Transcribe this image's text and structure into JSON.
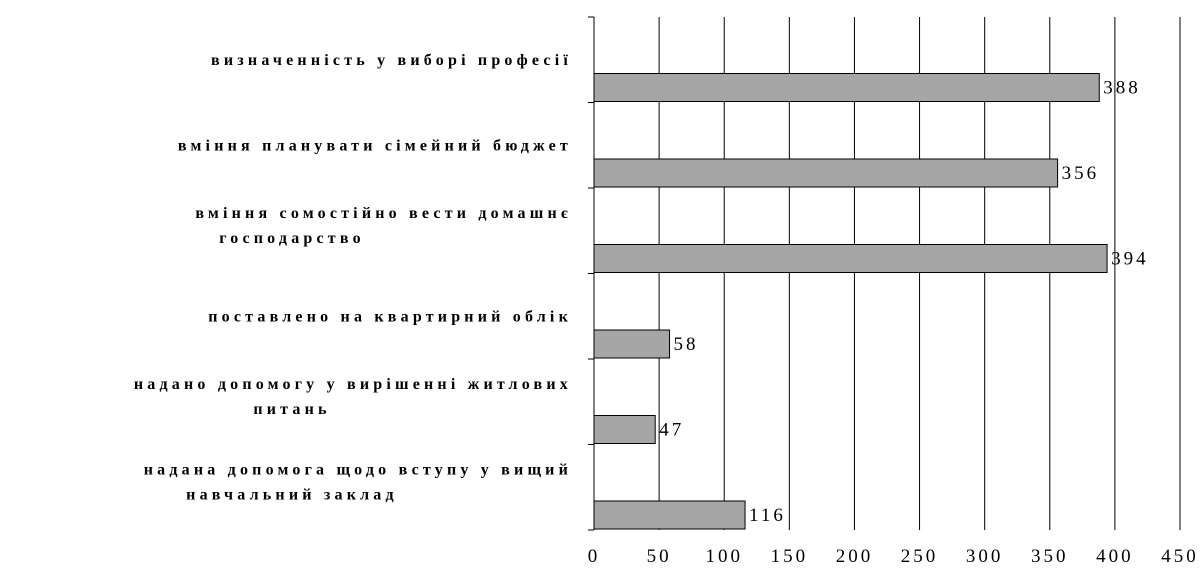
{
  "chart_data": {
    "type": "bar",
    "orientation": "horizontal",
    "categories": [
      [
        "визначенність у виборі професії"
      ],
      [
        "вміння планувати сімейний бюджет"
      ],
      [
        "вміння сомостійно вести домашнє",
        "господарство"
      ],
      [
        "поставлено на квартирний облік"
      ],
      [
        "надано допомогу у вирішенні житлових",
        "питань"
      ],
      [
        "надана допомога щодо вступу у вищий",
        "навчальний заклад"
      ]
    ],
    "values": [
      388,
      356,
      394,
      58,
      47,
      116
    ],
    "data_labels": [
      "388",
      "356",
      "394",
      "58",
      "47",
      "116"
    ],
    "xlim": [
      0,
      450
    ],
    "x_ticks": [
      0,
      50,
      100,
      150,
      200,
      250,
      300,
      350,
      400,
      450
    ],
    "x_tick_labels": [
      "0",
      "50",
      "100",
      "150",
      "200",
      "250",
      "300",
      "350",
      "400",
      "450"
    ],
    "title": "",
    "xlabel": "",
    "ylabel": "",
    "grid": "vertical",
    "legend": "none",
    "colors": {
      "bar_fill": "#a6a6a6",
      "bar_stroke": "#000000",
      "grid": "#000000",
      "text": "#000000"
    }
  }
}
